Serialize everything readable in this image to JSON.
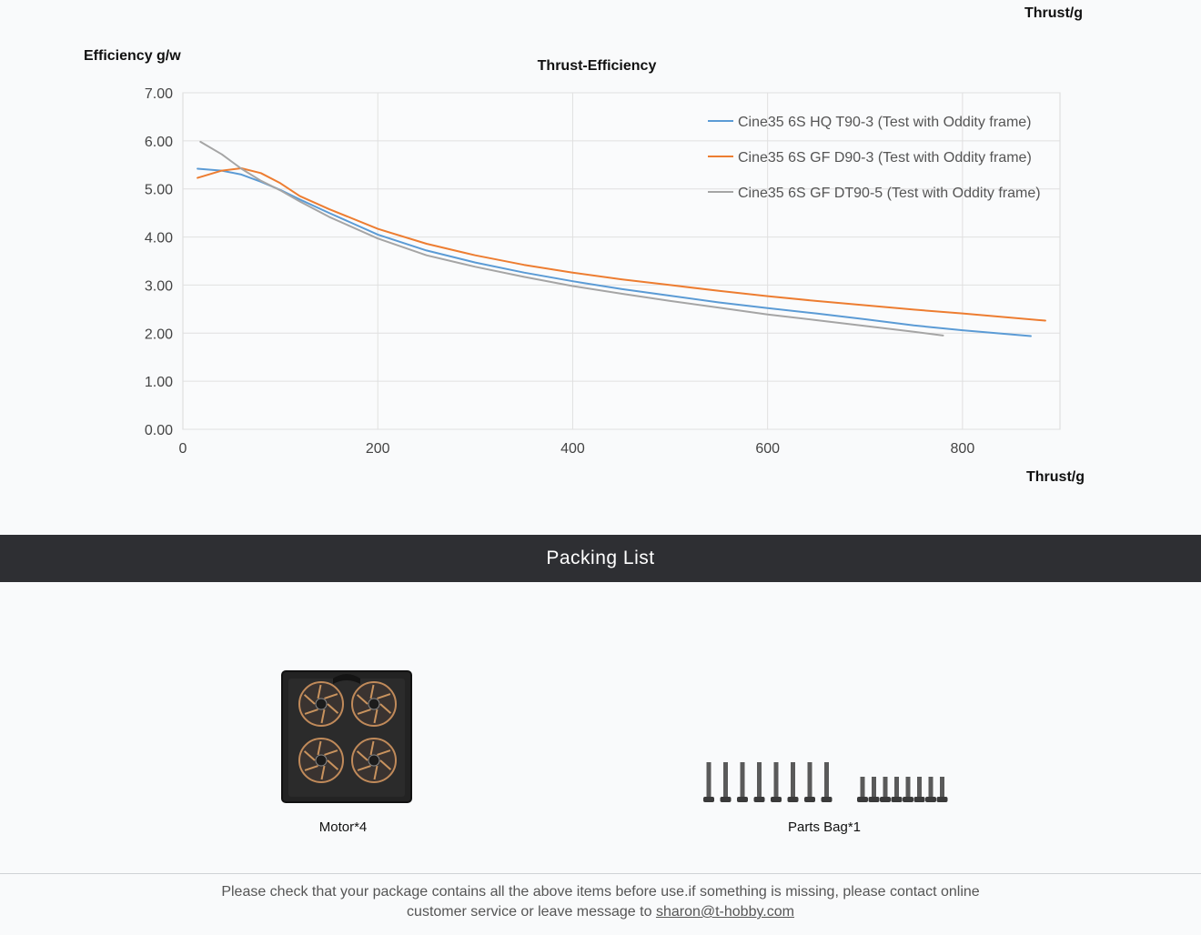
{
  "top_unit_label": "Thrust/g",
  "chart_data": {
    "type": "line",
    "title": "Thrust-Efficiency",
    "ylabel": "Efficiency g/w",
    "xlabel": "Thrust/g",
    "xlim": [
      0,
      900
    ],
    "ylim": [
      0,
      7
    ],
    "x_ticks": [
      "0",
      "200",
      "400",
      "600",
      "800"
    ],
    "y_ticks": [
      "0.00",
      "1.00",
      "2.00",
      "3.00",
      "4.00",
      "5.00",
      "6.00",
      "7.00"
    ],
    "grid": true,
    "legend_position": "top-right",
    "series": [
      {
        "name": "Cine35 6S HQ T90-3 (Test with Oddity frame)",
        "color": "#5b9bd5",
        "points": [
          [
            15,
            5.42
          ],
          [
            40,
            5.38
          ],
          [
            60,
            5.3
          ],
          [
            80,
            5.15
          ],
          [
            100,
            4.98
          ],
          [
            120,
            4.78
          ],
          [
            150,
            4.5
          ],
          [
            200,
            4.05
          ],
          [
            250,
            3.72
          ],
          [
            300,
            3.47
          ],
          [
            350,
            3.26
          ],
          [
            400,
            3.08
          ],
          [
            450,
            2.92
          ],
          [
            500,
            2.78
          ],
          [
            550,
            2.64
          ],
          [
            600,
            2.52
          ],
          [
            650,
            2.41
          ],
          [
            700,
            2.29
          ],
          [
            750,
            2.16
          ],
          [
            800,
            2.06
          ],
          [
            870,
            1.94
          ]
        ]
      },
      {
        "name": "Cine35 6S GF D90-3 (Test with Oddity frame)",
        "color": "#ed7d31",
        "points": [
          [
            15,
            5.23
          ],
          [
            40,
            5.38
          ],
          [
            60,
            5.43
          ],
          [
            80,
            5.33
          ],
          [
            100,
            5.12
          ],
          [
            120,
            4.85
          ],
          [
            150,
            4.58
          ],
          [
            200,
            4.17
          ],
          [
            250,
            3.86
          ],
          [
            300,
            3.62
          ],
          [
            350,
            3.42
          ],
          [
            400,
            3.26
          ],
          [
            450,
            3.12
          ],
          [
            500,
            3.0
          ],
          [
            550,
            2.88
          ],
          [
            600,
            2.77
          ],
          [
            650,
            2.67
          ],
          [
            700,
            2.58
          ],
          [
            750,
            2.49
          ],
          [
            800,
            2.41
          ],
          [
            885,
            2.26
          ]
        ]
      },
      {
        "name": "Cine35 6S GF DT90-5 (Test with Oddity frame)",
        "color": "#a5a5a5",
        "points": [
          [
            18,
            5.98
          ],
          [
            40,
            5.72
          ],
          [
            60,
            5.42
          ],
          [
            80,
            5.17
          ],
          [
            100,
            4.97
          ],
          [
            120,
            4.74
          ],
          [
            150,
            4.42
          ],
          [
            200,
            3.97
          ],
          [
            250,
            3.62
          ],
          [
            300,
            3.38
          ],
          [
            350,
            3.17
          ],
          [
            400,
            2.98
          ],
          [
            450,
            2.82
          ],
          [
            500,
            2.67
          ],
          [
            550,
            2.53
          ],
          [
            600,
            2.39
          ],
          [
            650,
            2.27
          ],
          [
            700,
            2.15
          ],
          [
            750,
            2.03
          ],
          [
            780,
            1.95
          ]
        ]
      }
    ]
  },
  "packing": {
    "title": "Packing List",
    "items": [
      {
        "label": "Motor*4",
        "icon": "motor-box-image"
      },
      {
        "label": "Parts Bag*1",
        "icon": "screws-image"
      }
    ]
  },
  "footer": {
    "text_1": "Please check that your package contains all the above items before use.if something is missing, please contact online",
    "text_2": "customer service or leave message to ",
    "email": "sharon@t-hobby.com"
  }
}
